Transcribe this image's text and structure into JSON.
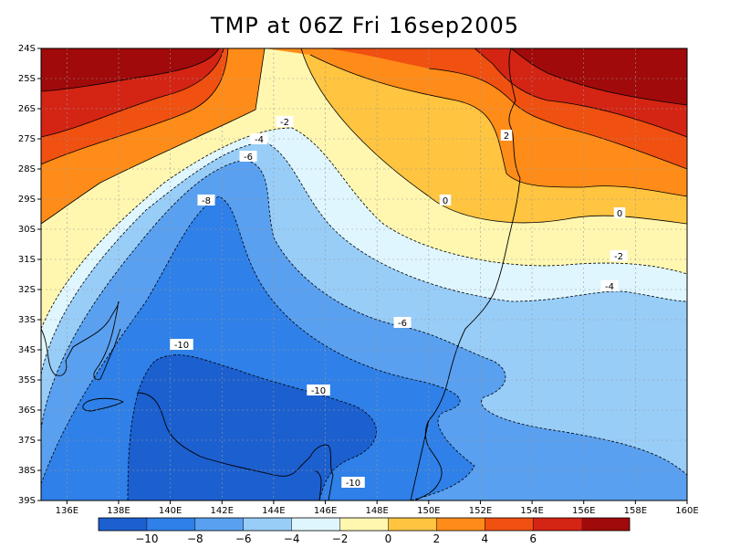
{
  "title": "TMP at 06Z Fri 16sep2005",
  "axes": {
    "y_ticks": [
      "24S",
      "25S",
      "26S",
      "27S",
      "28S",
      "29S",
      "30S",
      "31S",
      "32S",
      "33S",
      "34S",
      "35S",
      "36S",
      "37S",
      "38S",
      "39S"
    ],
    "x_ticks": [
      "136E",
      "138E",
      "140E",
      "142E",
      "144E",
      "146E",
      "148E",
      "150E",
      "152E",
      "154E",
      "156E",
      "158E",
      "160E"
    ],
    "lat_range": [
      -39,
      -24
    ],
    "lon_range": [
      135,
      160
    ]
  },
  "colorbar": {
    "labels": [
      "−10",
      "−8",
      "−6",
      "−4",
      "−2",
      "0",
      "2",
      "4",
      "6"
    ],
    "colors": [
      "#1c5fcf",
      "#2f80e8",
      "#5aa0f0",
      "#98cdf8",
      "#e0f6ff",
      "#fff7b0",
      "#ffc440",
      "#ff8c18",
      "#f05010",
      "#d42414",
      "#a00a0a"
    ]
  },
  "contour_labels": [
    "-2",
    "-4",
    "-6",
    "-8",
    "0",
    "2",
    "-2",
    "-4",
    "-6",
    "-10",
    "-10",
    "-10",
    "0"
  ],
  "chart_data": {
    "type": "heatmap",
    "title": "TMP at 06Z Fri 16sep2005",
    "variable": "TMP",
    "units_levels": [
      -10,
      -8,
      -6,
      -4,
      -2,
      0,
      2,
      4,
      6
    ],
    "region": "24S-39S, 135E-160E",
    "field_description_note": "Temperature is highest (>6) in the north/northeast and lowest (<-10) in the southwest interior.",
    "grid": true
  }
}
